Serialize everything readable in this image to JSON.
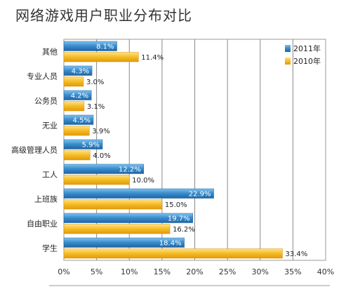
{
  "chart_data": {
    "type": "bar",
    "orientation": "horizontal",
    "title": "网络游戏用户职业分布对比",
    "categories": [
      "其他",
      "专业人员",
      "公务员",
      "无业",
      "高级管理人员",
      "工人",
      "上班族",
      "自由职业",
      "学生"
    ],
    "series": [
      {
        "name": "2011年",
        "values": [
          8.1,
          4.3,
          4.2,
          4.5,
          5.9,
          12.2,
          22.9,
          19.7,
          18.4
        ],
        "labels": [
          "8.1%",
          "4.3%",
          "4.2%",
          "4.5%",
          "5.9%",
          "12.2%",
          "22.9%",
          "19.7%",
          "18.4%"
        ],
        "color": "#2f7fbf"
      },
      {
        "name": "2010年",
        "values": [
          11.4,
          3.0,
          3.1,
          3.9,
          4.0,
          10.0,
          15.0,
          16.2,
          33.4
        ],
        "labels": [
          "11.4%",
          "3.0%",
          "3.1%",
          "3.9%",
          "4.0%",
          "10.0%",
          "15.0%",
          "16.2%",
          "33.4%"
        ],
        "color": "#f3b81a"
      }
    ],
    "xlim": [
      0,
      40
    ],
    "xticks": [
      "0%",
      "5%",
      "10%",
      "15%",
      "20%",
      "25%",
      "30%",
      "35%",
      "40%"
    ],
    "grid": true,
    "legend": "top-right"
  }
}
